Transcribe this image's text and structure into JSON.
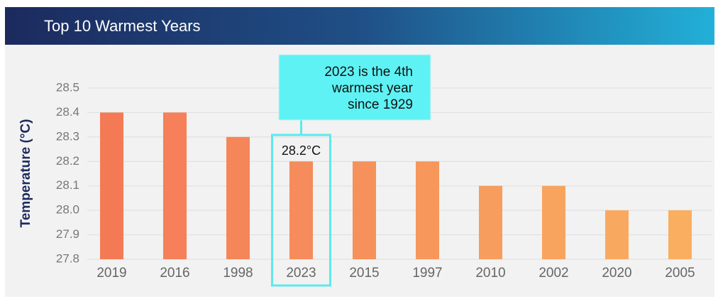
{
  "chart_data": {
    "type": "bar",
    "title": "Top 10 Warmest Years",
    "y_label": "Temperature (°C)",
    "categories": [
      "2019",
      "2016",
      "1998",
      "2023",
      "2015",
      "1997",
      "2010",
      "2002",
      "2020",
      "2005"
    ],
    "values": [
      28.4,
      28.4,
      28.3,
      28.2,
      28.2,
      28.2,
      28.1,
      28.1,
      28,
      28
    ],
    "value_labels": [
      null,
      null,
      null,
      "28.2°C",
      null,
      null,
      null,
      null,
      null,
      null
    ],
    "colors": [
      "#f47a55",
      "#f5805a",
      "#f5865a",
      "#f68b5b",
      "#f6915b",
      "#f7975c",
      "#f79d5d",
      "#f8a35e",
      "#f9a95f",
      "#f9ae60"
    ],
    "highlight": "2023",
    "annotation": [
      "2023 is the 4th",
      "warmest year",
      "since 1929"
    ],
    "ylim": [
      27.8,
      28.5
    ],
    "yticks": [
      27.8,
      27.9,
      {
        "value": 28,
        "label": "28.0"
      },
      28.1,
      28.2,
      28.3,
      28.4,
      28.5
    ],
    "grid": true
  }
}
